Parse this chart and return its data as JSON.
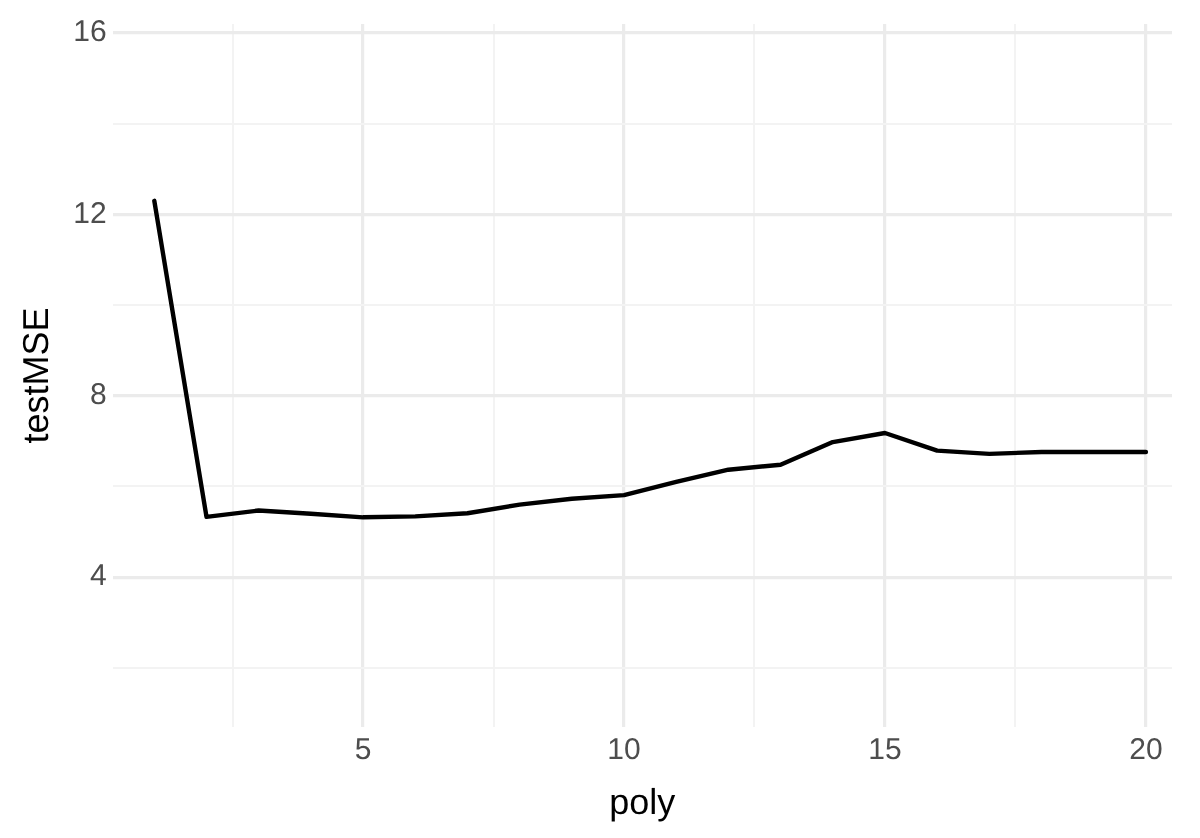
{
  "chart_data": {
    "type": "line",
    "xlabel": "poly",
    "ylabel": "testMSE",
    "x": [
      1,
      2,
      3,
      4,
      5,
      6,
      7,
      8,
      9,
      10,
      11,
      12,
      13,
      14,
      15,
      16,
      17,
      18,
      19,
      20
    ],
    "series": [
      {
        "color": "#000000",
        "values": [
          12.3,
          5.33,
          5.47,
          5.4,
          5.32,
          5.34,
          5.41,
          5.6,
          5.73,
          5.81,
          6.1,
          6.37,
          6.48,
          6.98,
          7.18,
          6.79,
          6.72,
          6.76,
          6.76,
          6.76
        ]
      }
    ],
    "xlim": [
      0.2,
      20.5
    ],
    "xticks": [
      5,
      10,
      15,
      20
    ],
    "ylim": [
      0.7,
      16.2
    ],
    "yticks": [
      4,
      8,
      12,
      16
    ],
    "grid": true,
    "legend": false,
    "marker": "none",
    "line_style": "solid"
  }
}
